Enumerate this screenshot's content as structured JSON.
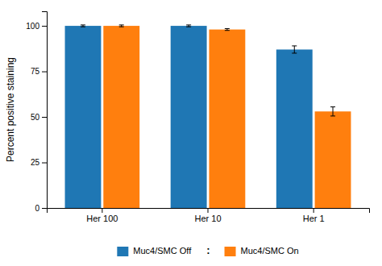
{
  "chart_data": {
    "type": "bar",
    "categories": [
      "Her 100",
      "Her 10",
      "Her 1"
    ],
    "series": [
      {
        "name": "Muc4/SMC Off",
        "values": [
          100,
          100,
          87
        ],
        "errors": [
          0.5,
          0.5,
          2.0
        ]
      },
      {
        "name": "Muc4/SMC On",
        "values": [
          100,
          98,
          53
        ],
        "errors": [
          0.5,
          0.5,
          2.5
        ]
      }
    ],
    "ylabel": "Percent positive staining",
    "ylim": [
      0,
      108
    ],
    "yticks": [
      0,
      25,
      50,
      75,
      100
    ],
    "grid": false,
    "legend": "bottom",
    "annotations": [
      ":"
    ]
  }
}
